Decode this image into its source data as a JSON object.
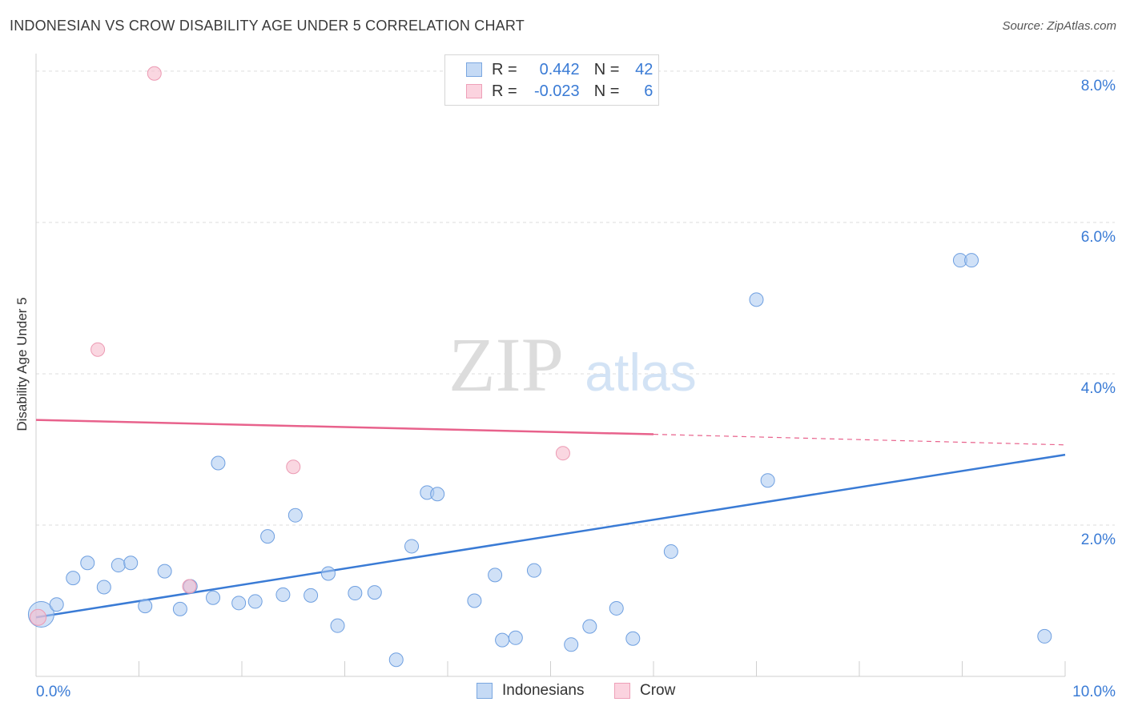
{
  "header": {
    "title": "INDONESIAN VS CROW DISABILITY AGE UNDER 5 CORRELATION CHART",
    "source": "Source: ZipAtlas.com"
  },
  "watermark": {
    "zip": "ZIP",
    "atlas": "atlas"
  },
  "legend": {
    "r_label": "R =",
    "n_label": "N =",
    "rows": [
      {
        "r": "0.442",
        "n": "42",
        "color": "#a9c8f0"
      },
      {
        "r": "-0.023",
        "n": "6",
        "color": "#f6bccd"
      }
    ]
  },
  "bottom_legend": {
    "indonesians": "Indonesians",
    "crow": "Crow"
  },
  "chart_data": {
    "type": "scatter",
    "title": "INDONESIAN VS CROW DISABILITY AGE UNDER 5 CORRELATION CHART",
    "xlabel": "",
    "ylabel": "Disability Age Under 5",
    "xlim": [
      0,
      10
    ],
    "ylim": [
      0,
      8.2
    ],
    "x_tick_labels": [
      "0.0%",
      "10.0%"
    ],
    "y_ticks": [
      2,
      4,
      6,
      8
    ],
    "y_tick_labels": [
      "2.0%",
      "4.0%",
      "6.0%",
      "8.0%"
    ],
    "grid": true,
    "colors": {
      "indonesians": "#3a7bd5",
      "indonesians_fill": "#a9c8f0",
      "crow": "#e8628c",
      "crow_fill": "#f6bccd"
    },
    "series": [
      {
        "name": "Indonesians",
        "points": [
          [
            0.05,
            0.82
          ],
          [
            0.2,
            0.95
          ],
          [
            0.36,
            1.3
          ],
          [
            0.5,
            1.5
          ],
          [
            0.66,
            1.18
          ],
          [
            0.8,
            1.47
          ],
          [
            0.92,
            1.5
          ],
          [
            1.06,
            0.93
          ],
          [
            1.25,
            1.39
          ],
          [
            1.4,
            0.89
          ],
          [
            1.5,
            1.19
          ],
          [
            1.72,
            1.04
          ],
          [
            1.77,
            2.82
          ],
          [
            1.97,
            0.97
          ],
          [
            2.13,
            0.99
          ],
          [
            2.25,
            1.85
          ],
          [
            2.4,
            1.08
          ],
          [
            2.52,
            2.13
          ],
          [
            2.67,
            1.07
          ],
          [
            2.84,
            1.36
          ],
          [
            2.93,
            0.67
          ],
          [
            3.1,
            1.1
          ],
          [
            3.29,
            1.11
          ],
          [
            3.5,
            0.22
          ],
          [
            3.65,
            1.72
          ],
          [
            3.8,
            2.43
          ],
          [
            3.9,
            2.41
          ],
          [
            4.26,
            1.0
          ],
          [
            4.46,
            1.34
          ],
          [
            4.53,
            0.48
          ],
          [
            4.66,
            0.51
          ],
          [
            4.84,
            1.4
          ],
          [
            5.2,
            0.42
          ],
          [
            5.38,
            0.66
          ],
          [
            5.64,
            0.9
          ],
          [
            5.8,
            0.5
          ],
          [
            6.17,
            1.65
          ],
          [
            7.0,
            4.98
          ],
          [
            7.11,
            2.59
          ],
          [
            8.98,
            5.5
          ],
          [
            9.09,
            5.5
          ],
          [
            9.8,
            0.53
          ]
        ],
        "trend": {
          "x": [
            0,
            10
          ],
          "y": [
            0.78,
            2.93
          ]
        }
      },
      {
        "name": "Crow",
        "points": [
          [
            0.02,
            0.78
          ],
          [
            0.6,
            4.32
          ],
          [
            1.15,
            7.97
          ],
          [
            1.49,
            1.19
          ],
          [
            2.5,
            2.77
          ],
          [
            5.12,
            2.95
          ]
        ],
        "trend": {
          "x": [
            0,
            6.0,
            10
          ],
          "y": [
            3.39,
            3.2,
            3.06
          ]
        }
      }
    ]
  }
}
